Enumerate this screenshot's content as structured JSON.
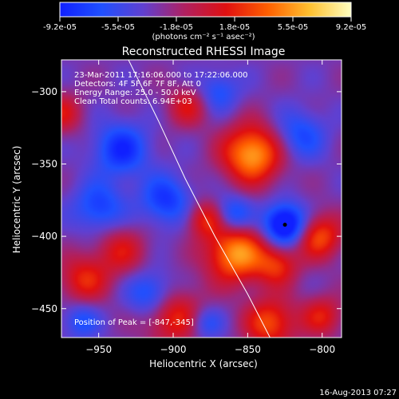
{
  "colors": {
    "background": "#000000",
    "text": "#ffffff",
    "limb": "#ffffff"
  },
  "colorbar": {
    "tick_labels": [
      "-9.2e-05",
      "-5.5e-05",
      "-1.8e-05",
      "1.8e-05",
      "5.5e-05",
      "9.2e-05"
    ],
    "unit_text": "(photons cm⁻² s⁻¹ asec⁻²)",
    "range": [
      -9.2e-05,
      9.2e-05
    ],
    "stops": [
      "#1020ff",
      "#2050ff",
      "#6040d0",
      "#b02060",
      "#e01010",
      "#ff6000",
      "#ffc030",
      "#ffffc0"
    ]
  },
  "chart_data": {
    "type": "heatmap",
    "title": "Reconstructed RHESSI Image",
    "xlabel": "Heliocentric X (arcsec)",
    "ylabel": "Heliocentric Y (arcsec)",
    "xlim": [
      -975,
      -787
    ],
    "ylim": [
      -470,
      -278
    ],
    "x_ticks": [
      -950,
      -900,
      -850,
      -800
    ],
    "y_ticks": [
      -300,
      -350,
      -400,
      -450
    ],
    "x_tick_labels": [
      "−950",
      "−900",
      "−850",
      "−800"
    ],
    "y_tick_labels": [
      "−300",
      "−350",
      "−400",
      "−450"
    ],
    "annotations": [
      "23-Mar-2011 17:16:06.000 to 17:22:06.000",
      "Detectors: 4F 5F 6F 7F 8F, Att 0",
      "Energy Range: 25.0 - 50.0 keV",
      "Clean    Total counts: 6.94E+03"
    ],
    "peak_label": "Position of Peak = [-847,-345]",
    "peak": [
      -847,
      -345
    ],
    "limb_points": [
      [
        -930,
        -278
      ],
      [
        -910,
        -320
      ],
      [
        -892,
        -360
      ],
      [
        -872,
        -400
      ],
      [
        -850,
        -440
      ],
      [
        -835,
        -470
      ]
    ],
    "blobs": [
      {
        "x": -847,
        "y": -343,
        "amp": 1.0,
        "s": 14
      },
      {
        "x": -858,
        "y": -412,
        "amp": 0.95,
        "s": 14
      },
      {
        "x": -802,
        "y": -400,
        "amp": 0.7,
        "s": 11
      },
      {
        "x": -830,
        "y": -420,
        "amp": 0.55,
        "s": 10
      },
      {
        "x": -935,
        "y": -410,
        "amp": 0.45,
        "s": 12
      },
      {
        "x": -960,
        "y": -430,
        "amp": 0.55,
        "s": 12
      },
      {
        "x": -900,
        "y": -455,
        "amp": 0.6,
        "s": 14
      },
      {
        "x": -835,
        "y": -460,
        "amp": 0.7,
        "s": 12
      },
      {
        "x": -890,
        "y": -310,
        "amp": 0.45,
        "s": 10
      },
      {
        "x": -975,
        "y": -315,
        "amp": 0.45,
        "s": 10
      },
      {
        "x": -878,
        "y": -388,
        "amp": 0.55,
        "s": 9
      },
      {
        "x": -800,
        "y": -455,
        "amp": 0.5,
        "s": 10
      },
      {
        "x": -825,
        "y": -392,
        "amp": -1.0,
        "s": 10
      },
      {
        "x": -860,
        "y": -385,
        "amp": -0.55,
        "s": 9
      },
      {
        "x": -935,
        "y": -340,
        "amp": -0.6,
        "s": 13
      },
      {
        "x": -905,
        "y": -375,
        "amp": -0.55,
        "s": 12
      },
      {
        "x": -950,
        "y": -380,
        "amp": -0.5,
        "s": 12
      },
      {
        "x": -870,
        "y": -300,
        "amp": -0.4,
        "s": 10
      },
      {
        "x": -815,
        "y": -330,
        "amp": -0.45,
        "s": 12
      },
      {
        "x": -915,
        "y": -440,
        "amp": -0.55,
        "s": 11
      },
      {
        "x": -962,
        "y": -458,
        "amp": -0.4,
        "s": 9
      },
      {
        "x": -878,
        "y": -460,
        "amp": -0.4,
        "s": 8
      }
    ]
  },
  "footer": {
    "date": "16-Aug-2013 07:27"
  }
}
